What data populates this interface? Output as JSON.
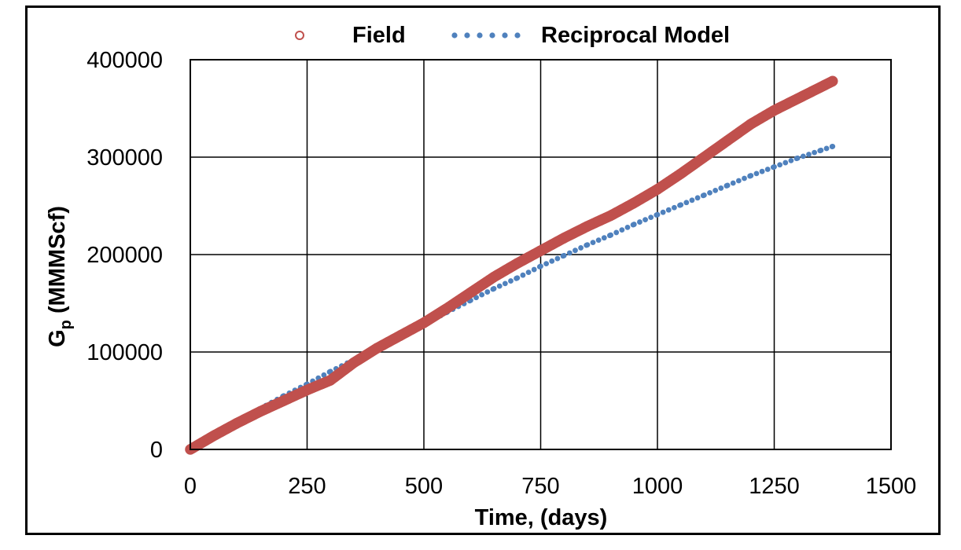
{
  "chart_data": {
    "type": "scatter",
    "title": "",
    "xlabel": "Time, (days)",
    "ylabel_main": "G",
    "ylabel_sub": "p",
    "ylabel_tail": " (MMMScf)",
    "xlim": [
      0,
      1500
    ],
    "ylim": [
      0,
      400000
    ],
    "x_ticks": [
      0,
      250,
      500,
      750,
      1000,
      1250,
      1500
    ],
    "y_ticks": [
      0,
      100000,
      200000,
      300000,
      400000
    ],
    "x_tick_labels": [
      "0",
      "250",
      "500",
      "750",
      "1000",
      "1250",
      "1500"
    ],
    "y_tick_labels": [
      "0",
      "100000",
      "200000",
      "300000",
      "400000"
    ],
    "grid": true,
    "legend_position": "top",
    "series": [
      {
        "name": "Field",
        "color": "#c0504d",
        "marker": "open-circle",
        "x": [
          0,
          50,
          100,
          150,
          200,
          250,
          300,
          350,
          400,
          450,
          500,
          550,
          600,
          650,
          700,
          750,
          800,
          850,
          900,
          950,
          1000,
          1050,
          1100,
          1150,
          1200,
          1250,
          1300,
          1350,
          1375
        ],
        "y": [
          0,
          14000,
          27000,
          39000,
          50000,
          61000,
          71000,
          89000,
          104000,
          117000,
          130000,
          145000,
          161000,
          177000,
          191000,
          204000,
          217000,
          229000,
          240000,
          253000,
          267000,
          283000,
          300000,
          317000,
          334000,
          348000,
          360000,
          372000,
          378000
        ]
      },
      {
        "name": "Reciprocal Model",
        "color": "#4f81bd",
        "marker": "dot",
        "x": [
          0,
          50,
          100,
          150,
          200,
          250,
          300,
          350,
          400,
          450,
          500,
          550,
          600,
          650,
          700,
          750,
          800,
          850,
          900,
          950,
          1000,
          1050,
          1100,
          1150,
          1200,
          1250,
          1300,
          1350,
          1375
        ],
        "y": [
          0,
          15000,
          29000,
          42000,
          55000,
          67000,
          80000,
          92000,
          104000,
          116000,
          128000,
          141000,
          153000,
          165000,
          176000,
          188000,
          199000,
          210000,
          220000,
          231000,
          241000,
          251000,
          261000,
          271000,
          281000,
          290000,
          299000,
          307000,
          311000
        ]
      }
    ]
  }
}
